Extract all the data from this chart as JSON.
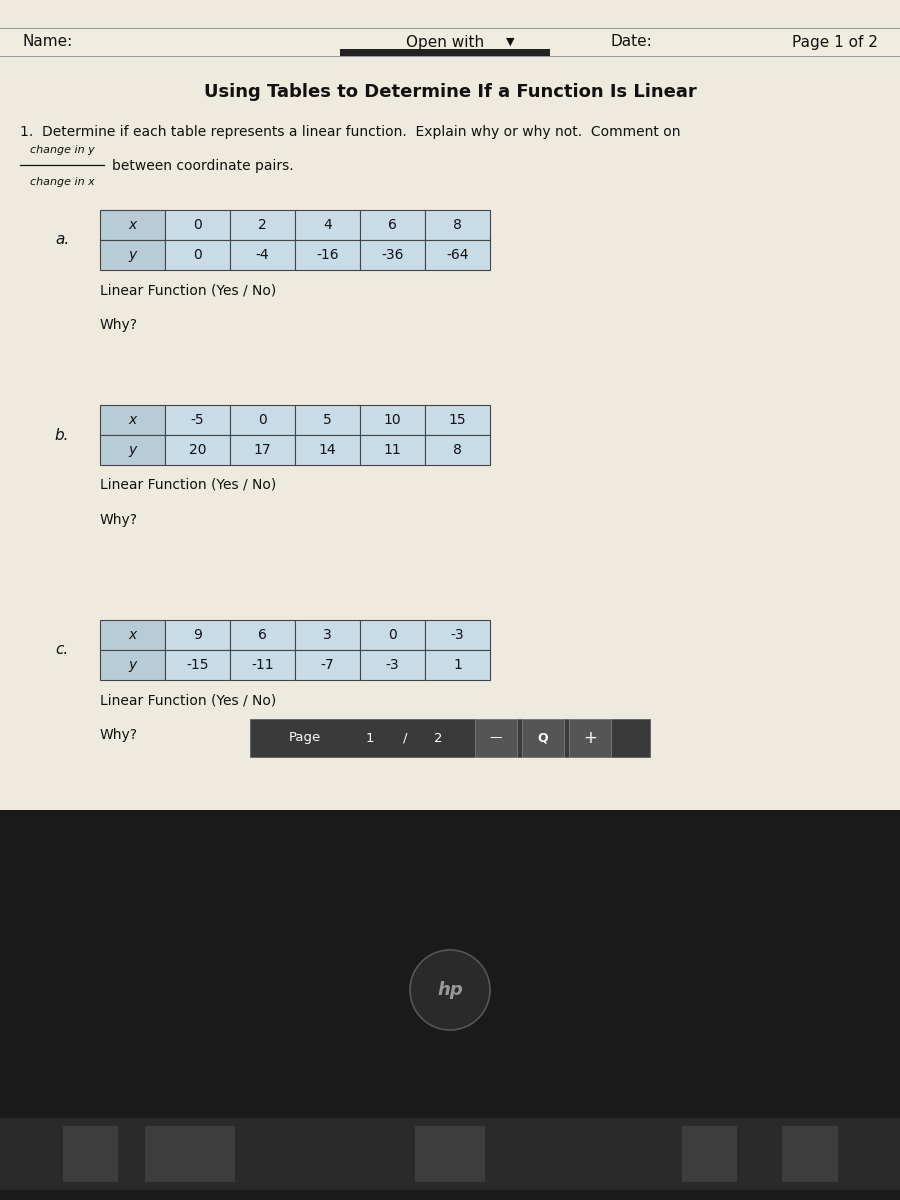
{
  "title": "Using Tables to Determine If a Function Is Linear",
  "header_name": "Name:",
  "header_open_with": "Open with",
  "header_date": "Date:",
  "header_page": "Page 1 of 2",
  "question_text": "1.  Determine if each table represents a linear function.  Explain why or why not.  Comment on",
  "fraction_numerator": "change in y",
  "fraction_denominator": "change in x",
  "fraction_suffix": "between coordinate pairs.",
  "table_a_label": "a.",
  "table_a_x": [
    "x",
    "0",
    "2",
    "4",
    "6",
    "8"
  ],
  "table_a_y": [
    "y",
    "0",
    "-4",
    "-16",
    "-36",
    "-64"
  ],
  "table_b_label": "b.",
  "table_b_x": [
    "x",
    "-5",
    "0",
    "5",
    "10",
    "15"
  ],
  "table_b_y": [
    "y",
    "20",
    "17",
    "14",
    "11",
    "8"
  ],
  "table_c_label": "c.",
  "table_c_x": [
    "x",
    "9",
    "6",
    "3",
    "0",
    "-3"
  ],
  "table_c_y": [
    "y",
    "-15",
    "-11",
    "-7",
    "-3",
    "1"
  ],
  "linear_function_text": "Linear Function (Yes / No)",
  "why_text": "Why?",
  "bg_color": "#ddd9c4",
  "paper_color": "#eeeade",
  "table_bg": "#c8dce8",
  "table_header_bg": "#b8ccd8",
  "border_color": "#444444",
  "text_color": "#111111",
  "dark_bg": "#1c1c1c"
}
